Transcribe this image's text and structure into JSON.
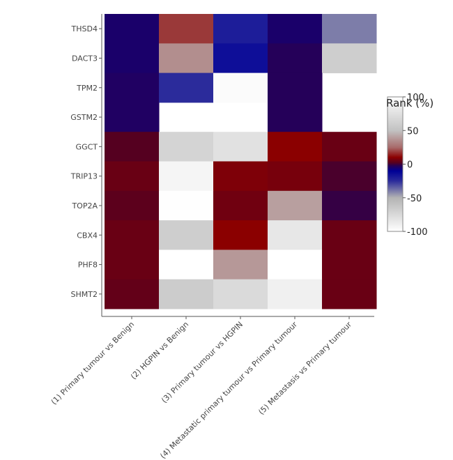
{
  "chart_data": {
    "type": "heatmap",
    "title": "",
    "xlabel": "",
    "ylabel": "",
    "x_categories": [
      "(1) Primary tumour vs Benign",
      "(2) HGPIN vs Benign",
      "(3) Primary tumour vs HGPIN",
      "(4) Metastatic primary tumour vs Primary tumour",
      "(5) Metastasis vs Primary tumour"
    ],
    "y_categories": [
      "THSD4",
      "DACT3",
      "TPM2",
      "GSTM2",
      "GGCT",
      "TRIP13",
      "TOP2A",
      "CBX4",
      "PHF8",
      "SHMT2"
    ],
    "values": [
      [
        -5,
        18,
        -20,
        -5,
        -40
      ],
      [
        -5,
        35,
        -15,
        -3,
        60
      ],
      [
        -4,
        -25,
        97,
        -3,
        null
      ],
      [
        -4,
        null,
        null,
        -3,
        null
      ],
      [
        2,
        65,
        75,
        10,
        5
      ],
      [
        5,
        92,
        8,
        7,
        1
      ],
      [
        3,
        99,
        6,
        40,
        -1
      ],
      [
        5,
        60,
        10,
        80,
        5
      ],
      [
        5,
        100,
        38,
        100,
        5
      ],
      [
        4,
        58,
        70,
        88,
        5
      ]
    ],
    "colorbar": {
      "title": "Rank (%)",
      "range": [
        -100,
        100
      ],
      "ticks": [
        100,
        50,
        0,
        -50,
        -100
      ],
      "colors": [
        [
          -100,
          "#ffffff"
        ],
        [
          -50,
          "#b3b3b3"
        ],
        [
          -25,
          "#2b2b9b"
        ],
        [
          -10,
          "#000096"
        ],
        [
          -2,
          "#2a0050"
        ],
        [
          2,
          "#550020"
        ],
        [
          10,
          "#8b0000"
        ],
        [
          25,
          "#a86b6b"
        ],
        [
          50,
          "#c2c2c2"
        ],
        [
          100,
          "#ffffff"
        ]
      ]
    }
  }
}
